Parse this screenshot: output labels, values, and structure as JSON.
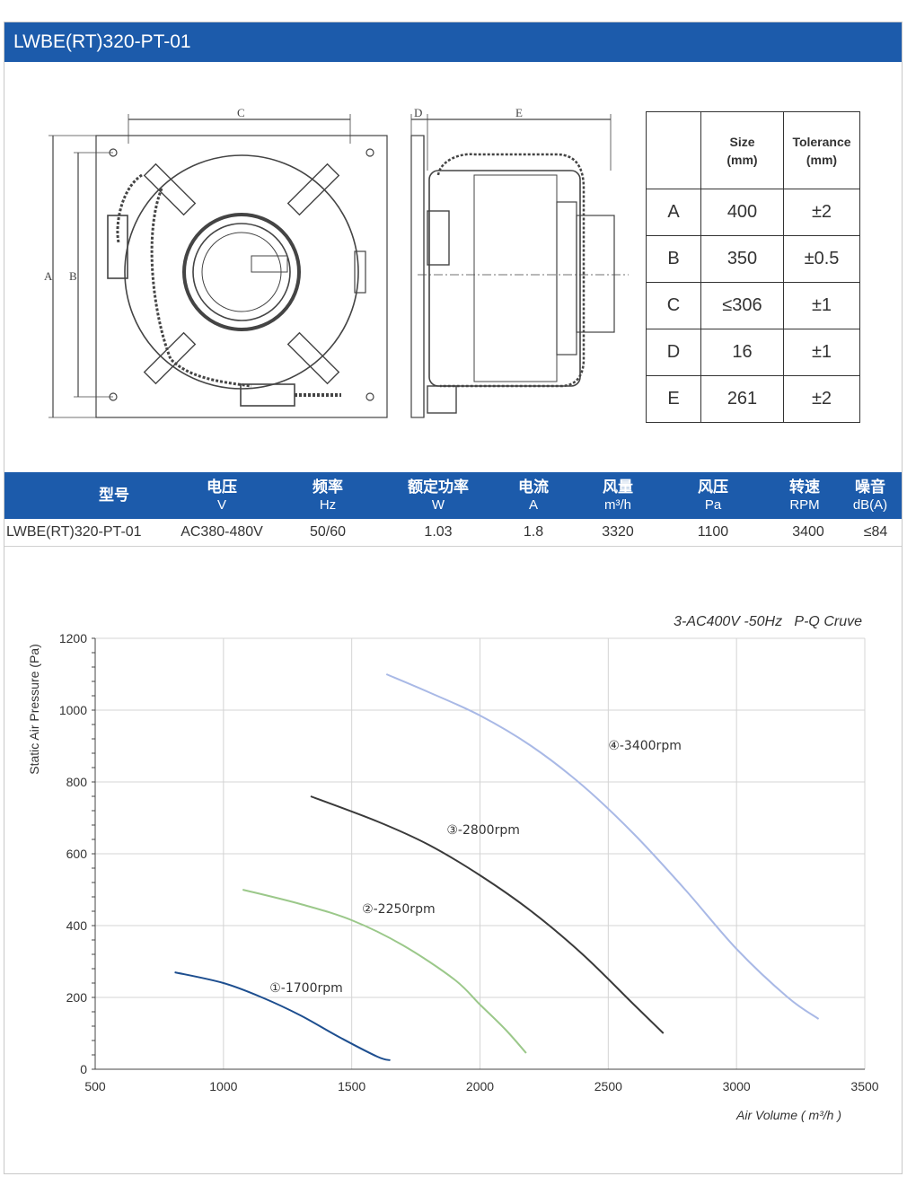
{
  "title": "LWBE(RT)320-PT-01",
  "drawing": {
    "front_labels": [
      "C",
      "A",
      "B"
    ],
    "side_labels": [
      "D",
      "E"
    ]
  },
  "dimensions": {
    "headers": [
      "",
      "Size\n(mm)",
      "Tolerance\n(mm)"
    ],
    "header_size_1": "Size",
    "header_size_2": "(mm)",
    "header_tol_1": "Tolerance",
    "header_tol_2": "(mm)",
    "rows": [
      {
        "label": "A",
        "size": "400",
        "tol": "±2"
      },
      {
        "label": "B",
        "size": "350",
        "tol": "±0.5"
      },
      {
        "label": "C",
        "size": "≤306",
        "tol": "±1"
      },
      {
        "label": "D",
        "size": "16",
        "tol": "±1"
      },
      {
        "label": "E",
        "size": "261",
        "tol": "±2"
      }
    ]
  },
  "specs": {
    "headers": [
      {
        "zh": "型号",
        "unit": ""
      },
      {
        "zh": "电压",
        "unit": "V"
      },
      {
        "zh": "频率",
        "unit": "Hz"
      },
      {
        "zh": "额定功率",
        "unit": "W"
      },
      {
        "zh": "电流",
        "unit": "A"
      },
      {
        "zh": "风量",
        "unit": "m³/h"
      },
      {
        "zh": "风压",
        "unit": "Pa"
      },
      {
        "zh": "转速",
        "unit": "RPM"
      },
      {
        "zh": "噪音",
        "unit": "dB(A)"
      }
    ],
    "values": [
      "LWBE(RT)320-PT-01",
      "AC380-480V",
      "50/60",
      "1.03",
      "1.8",
      "3320",
      "1100",
      "3400",
      "≤84"
    ]
  },
  "chart_data": {
    "type": "line",
    "title": "3-AC400V -50Hz   P-Q Cruve",
    "xlabel": "Air Volume ( m³/h )",
    "ylabel": "Static Air Pressure  (Pa)",
    "xlim": [
      500,
      3500
    ],
    "ylim": [
      0,
      1200
    ],
    "xticks": [
      500,
      1000,
      1500,
      2000,
      2500,
      3000,
      3500
    ],
    "yticks": [
      0,
      200,
      400,
      600,
      800,
      1000,
      1200
    ],
    "grid": true,
    "series": [
      {
        "name": "①-1700rpm",
        "color": "#1d4e8f",
        "points": [
          [
            810,
            270
          ],
          [
            1000,
            240
          ],
          [
            1150,
            200
          ],
          [
            1300,
            150
          ],
          [
            1450,
            90
          ],
          [
            1600,
            35
          ],
          [
            1650,
            25
          ]
        ]
      },
      {
        "name": "②-2250rpm",
        "color": "#9bc88a",
        "points": [
          [
            1075,
            500
          ],
          [
            1300,
            460
          ],
          [
            1500,
            415
          ],
          [
            1700,
            345
          ],
          [
            1900,
            250
          ],
          [
            2000,
            180
          ],
          [
            2100,
            110
          ],
          [
            2180,
            45
          ]
        ]
      },
      {
        "name": "③-2800rpm",
        "color": "#3a3a3a",
        "points": [
          [
            1340,
            760
          ],
          [
            1600,
            690
          ],
          [
            1800,
            625
          ],
          [
            2000,
            540
          ],
          [
            2200,
            440
          ],
          [
            2400,
            320
          ],
          [
            2600,
            180
          ],
          [
            2715,
            100
          ]
        ]
      },
      {
        "name": "④-3400rpm",
        "color": "#a9b9e6",
        "points": [
          [
            1635,
            1100
          ],
          [
            1800,
            1050
          ],
          [
            2000,
            985
          ],
          [
            2200,
            900
          ],
          [
            2400,
            790
          ],
          [
            2600,
            655
          ],
          [
            2800,
            500
          ],
          [
            3000,
            335
          ],
          [
            3200,
            200
          ],
          [
            3320,
            140
          ]
        ]
      }
    ],
    "labels": [
      {
        "series": 0,
        "x": 1180,
        "y": 215
      },
      {
        "series": 1,
        "x": 1540,
        "y": 435
      },
      {
        "series": 2,
        "x": 1870,
        "y": 655
      },
      {
        "series": 3,
        "x": 2500,
        "y": 890
      }
    ]
  }
}
